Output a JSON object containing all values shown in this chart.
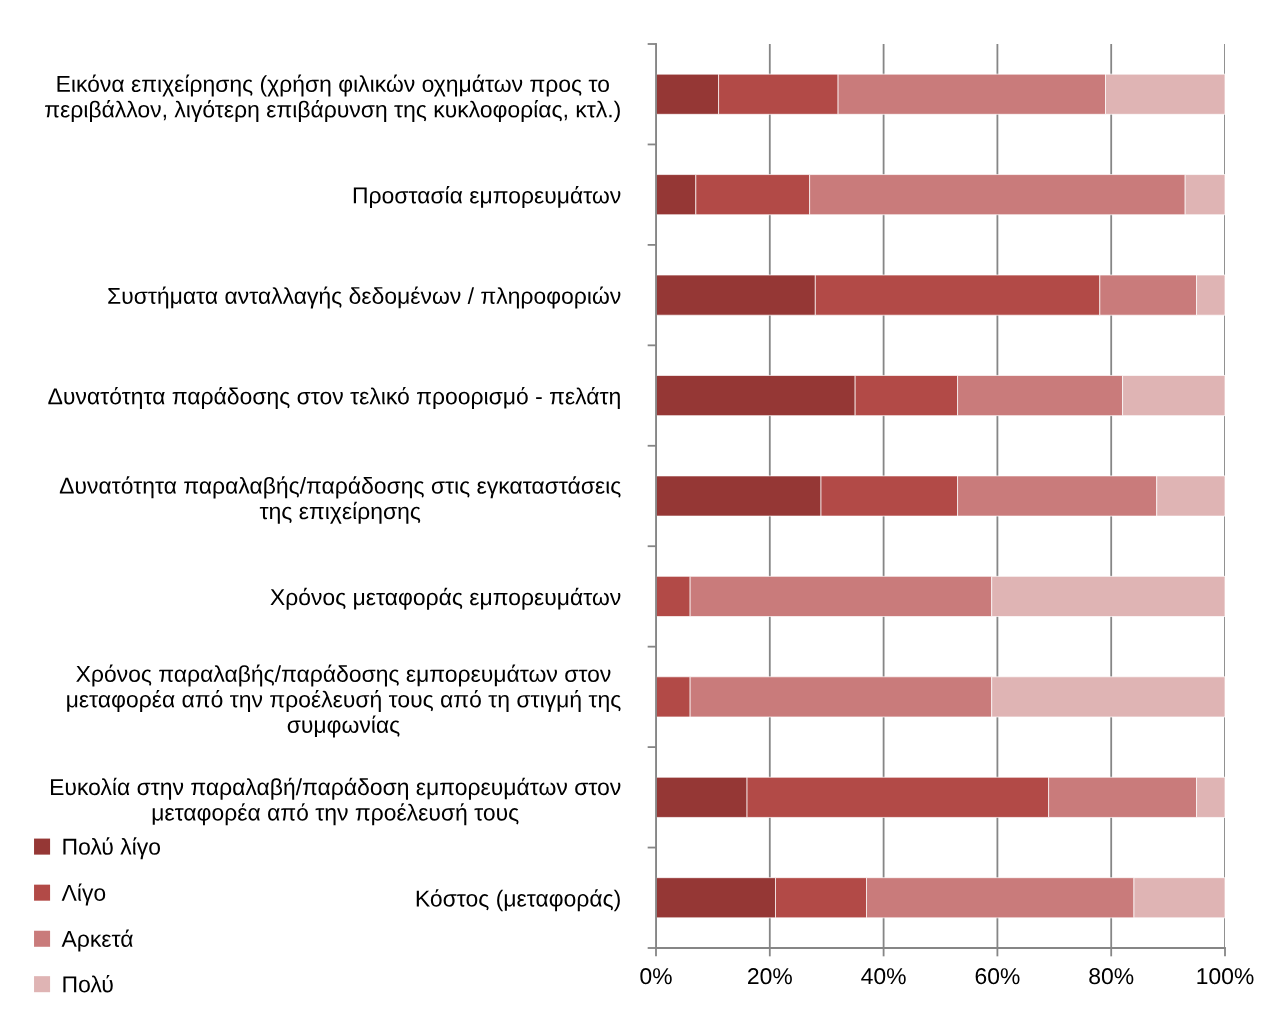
{
  "chart_data": {
    "type": "bar",
    "orientation": "horizontal",
    "stacked": true,
    "categories": [
      "Εικόνα επιχείρησης (χρήση φιλικών οχημάτων προς το περιβάλλον, λιγότερη επιβάρυνση της κυκλοφορίας, κτλ.)",
      "Προστασία εμπορευμάτων",
      "Συστήματα ανταλλαγής δεδομένων / πληροφοριών",
      "Δυνατότητα παράδοσης στον τελικό προορισμό - πελάτη",
      "Δυνατότητα παραλαβής/παράδοσης στις εγκαταστάσεις της επιχείρησης",
      "Χρόνος μεταφοράς εμπορευμάτων",
      "Χρόνος παραλαβής/παράδοσης εμπορευμάτων στον μεταφορέα από την προέλευσή τους από τη στιγμή της συμφωνίας",
      "Ευκολία στην παραλαβή/παράδοση εμπορευμάτων στον μεταφορέα από την προέλευσή τους",
      "Κόστος (μεταφοράς)"
    ],
    "series": [
      {
        "name": "Πολύ λίγο",
        "color": "#953735",
        "values": [
          11,
          7,
          28,
          35,
          29,
          0,
          0,
          16,
          21
        ]
      },
      {
        "name": "Λίγο",
        "color": "#b24a47",
        "values": [
          21,
          20,
          50,
          18,
          24,
          6,
          6,
          53,
          16
        ]
      },
      {
        "name": "Αρκετά",
        "color": "#c97b7b",
        "values": [
          47,
          66,
          17,
          29,
          35,
          53,
          53,
          26,
          47
        ]
      },
      {
        "name": "Πολύ",
        "color": "#dfb4b4",
        "values": [
          21,
          7,
          5,
          18,
          12,
          41,
          41,
          5,
          16
        ]
      }
    ],
    "xlim": [
      0,
      100
    ],
    "xticks": [
      {
        "value": 0,
        "label": "0%"
      },
      {
        "value": 20,
        "label": "20%"
      },
      {
        "value": 40,
        "label": "40%"
      },
      {
        "value": 60,
        "label": "60%"
      },
      {
        "value": 80,
        "label": "80%"
      },
      {
        "value": 100,
        "label": "100%"
      }
    ],
    "grid": "x",
    "legend": "bottom left"
  }
}
